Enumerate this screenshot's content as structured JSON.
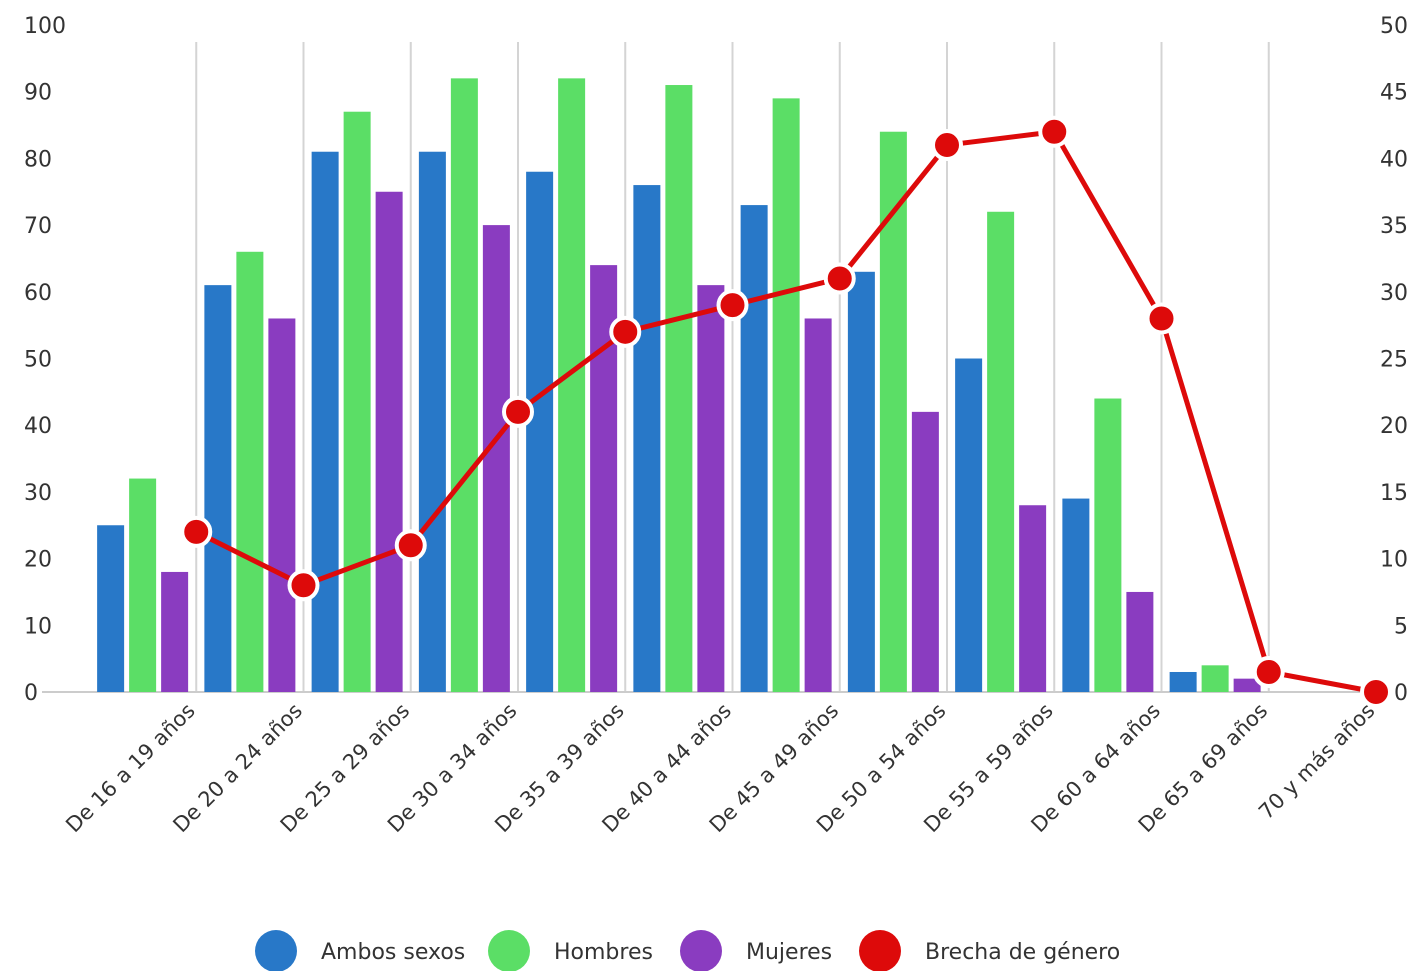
{
  "chart_data": {
    "type": "bar",
    "categories": [
      "De 16 a 19 años",
      "De 20 a 24 años",
      "De 25 a 29 años",
      "De 30 a 34 años",
      "De 35 a 39 años",
      "De 40 a 44 años",
      "De 45 a 49 años",
      "De 50 a 54 años",
      "De 55 a 59 años",
      "De 60 a 64 años",
      "De 65 a 69 años",
      "70 y más años"
    ],
    "series": [
      {
        "name": "Ambos sexos",
        "type": "bar",
        "axis": "left",
        "color": "#2878C8",
        "values": [
          25,
          61,
          81,
          81,
          78,
          76,
          73,
          63,
          50,
          29,
          3,
          0
        ]
      },
      {
        "name": "Hombres",
        "type": "bar",
        "axis": "left",
        "color": "#5BDE66",
        "values": [
          32,
          66,
          87,
          92,
          92,
          91,
          89,
          84,
          72,
          44,
          4,
          0
        ]
      },
      {
        "name": "Mujeres",
        "type": "bar",
        "axis": "left",
        "color": "#8A3CC0",
        "values": [
          18,
          56,
          75,
          70,
          64,
          61,
          56,
          42,
          28,
          15,
          2,
          0
        ]
      },
      {
        "name": "Brecha de género",
        "type": "line",
        "axis": "right",
        "color": "#DD0A0A",
        "values": [
          12,
          8,
          11,
          21,
          27,
          29,
          31,
          41,
          42,
          28,
          1.5,
          0
        ]
      }
    ],
    "y_left": {
      "min": 0,
      "max": 100,
      "ticks": [
        "0",
        "10",
        "20",
        "30",
        "40",
        "50",
        "60",
        "70",
        "80",
        "90",
        "100"
      ]
    },
    "y_right": {
      "min": 0,
      "max": 50,
      "ticks": [
        "0",
        "5",
        "10",
        "15",
        "20",
        "25",
        "30",
        "35",
        "40",
        "45",
        "50"
      ]
    },
    "grid": "vertical",
    "legend_position": "bottom"
  }
}
